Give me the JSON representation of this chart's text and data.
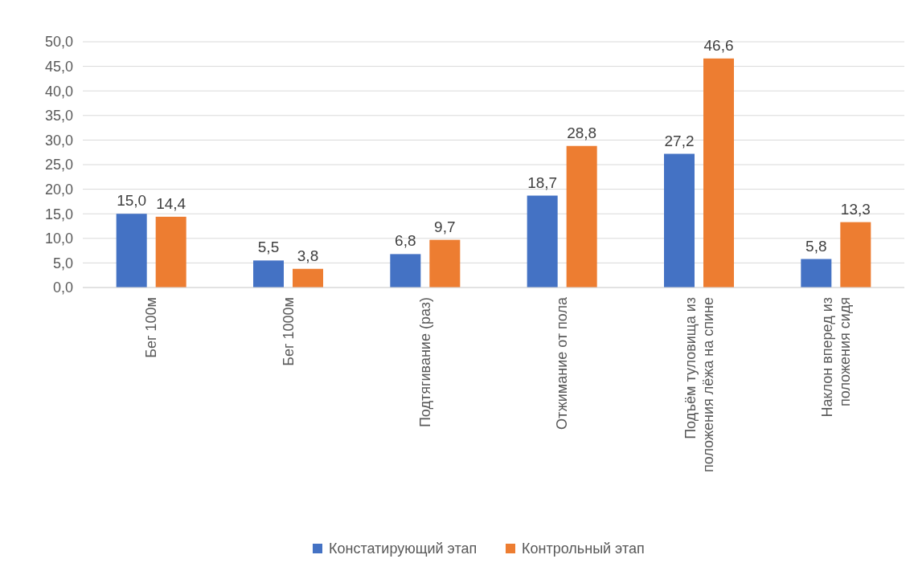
{
  "chart_data": {
    "type": "bar",
    "categories": [
      "Бег 100м",
      "Бег 1000м",
      "Подтягивание (раз)",
      "Отжимание от пола",
      "Подъём туловища из\nположения лёжа на спине",
      "Наклон вперед из\nположения сидя"
    ],
    "series": [
      {
        "name": "Констатирующий этап",
        "color": "#4472c4",
        "values": [
          15.0,
          5.5,
          6.8,
          18.7,
          27.2,
          5.8
        ],
        "value_labels": [
          "15,0",
          "5,5",
          "6,8",
          "18,7",
          "27,2",
          "5,8"
        ]
      },
      {
        "name": "Контрольный этап",
        "color": "#ed7d31",
        "values": [
          14.4,
          3.8,
          9.7,
          28.8,
          46.6,
          13.3
        ],
        "value_labels": [
          "14,4",
          "3,8",
          "9,7",
          "28,8",
          "46,6",
          "13,3"
        ]
      }
    ],
    "ylim": [
      0,
      50
    ],
    "yticks": [
      {
        "value": 0,
        "label": "0,0"
      },
      {
        "value": 5,
        "label": "5,0"
      },
      {
        "value": 10,
        "label": "10,0"
      },
      {
        "value": 15,
        "label": "15,0"
      },
      {
        "value": 20,
        "label": "20,0"
      },
      {
        "value": 25,
        "label": "25,0"
      },
      {
        "value": 30,
        "label": "30,0"
      },
      {
        "value": 35,
        "label": "35,0"
      },
      {
        "value": 40,
        "label": "40,0"
      },
      {
        "value": 45,
        "label": "45,0"
      },
      {
        "value": 50,
        "label": "50,0"
      }
    ],
    "grid": "y",
    "legend": "bottom"
  }
}
